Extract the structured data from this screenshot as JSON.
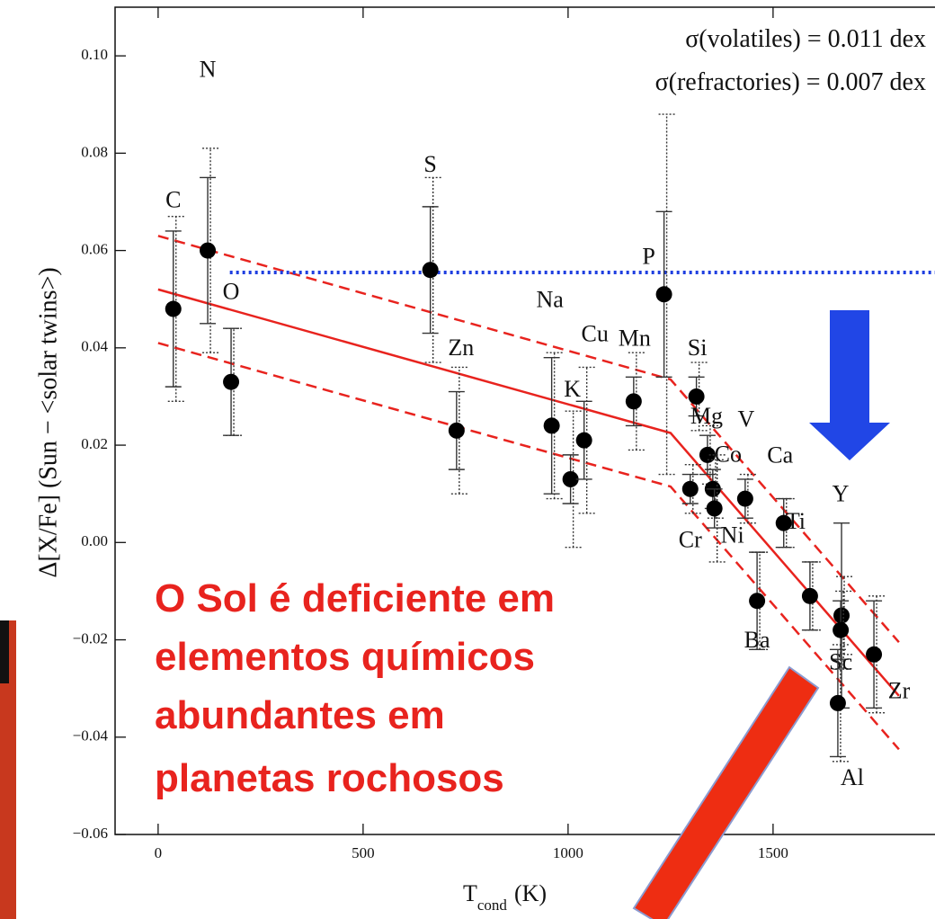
{
  "chart_data": {
    "type": "scatter",
    "annotations": [
      "σ(volatiles) = 0.011 dex",
      "σ(refractories) = 0.007 dex"
    ],
    "y_label": "Δ[X/Fe] (Sun − <solar twins>)",
    "x_label": [
      "T",
      "cond",
      "(K)"
    ],
    "message": [
      "O Sol é deficiente em",
      "elementos químicos",
      "abundantes em",
      "planetas rochosos"
    ],
    "xlim": [
      -105,
      1895
    ],
    "ylim": [
      -0.06,
      0.11
    ],
    "xticks": [
      0,
      500,
      1000,
      1500
    ],
    "yticks": [
      {
        "value": -0.06,
        "label": "−0.06"
      },
      {
        "value": -0.04,
        "label": "−0.04"
      },
      {
        "value": -0.02,
        "label": "−0.02"
      },
      {
        "value": 0,
        "label": "0.00"
      },
      {
        "value": 0.02,
        "label": "0.02"
      },
      {
        "value": 0.04,
        "label": "0.04"
      },
      {
        "value": 0.06,
        "label": "0.06"
      },
      {
        "value": 0.08,
        "label": "0.08"
      },
      {
        "value": 0.1,
        "label": "0.10"
      }
    ],
    "point_labels": [
      "C",
      "N",
      "O",
      "S",
      "Zn",
      "Na",
      "K",
      "Cu",
      "Mn",
      "P",
      "Cr",
      "Si",
      "Mg",
      "Co",
      "Ni",
      "V",
      "Ba",
      "Ca",
      "Ti",
      "Y",
      "Sc",
      "Al",
      "Zr"
    ],
    "x": [
      37,
      121,
      178,
      664,
      728,
      960,
      1006,
      1039,
      1160,
      1234,
      1298,
      1313,
      1340,
      1353,
      1357,
      1432,
      1461,
      1526,
      1590,
      1667,
      1665,
      1658,
      1746
    ],
    "values": [
      0.048,
      0.06,
      0.033,
      0.056,
      0.023,
      0.024,
      0.013,
      0.021,
      0.029,
      0.051,
      0.011,
      0.03,
      0.018,
      0.011,
      0.007,
      0.009,
      -0.012,
      0.004,
      -0.011,
      -0.015,
      -0.018,
      -0.033,
      -0.023
    ],
    "errors": [
      0.016,
      0.015,
      0.011,
      0.013,
      0.008,
      0.014,
      0.005,
      0.008,
      0.005,
      0.017,
      0.003,
      0.004,
      0.004,
      0.004,
      0.004,
      0.004,
      0.01,
      0.005,
      0.007,
      0.019,
      0.006,
      0.011,
      0.011
    ],
    "errors_dotted": [
      0.019,
      0.021,
      0.011,
      0.019,
      0.013,
      0.015,
      0.014,
      0.015,
      0.01,
      0.037,
      0.005,
      0.007,
      0.006,
      0.006,
      0.011,
      0.005,
      0.01,
      0.005,
      0.007,
      0.008,
      0.008,
      0.012,
      0.012
    ],
    "color": "#000000",
    "lines": [
      {
        "x": [
          0,
          1250,
          1807
        ],
        "values": [
          0.052,
          0.0225,
          -0.0315
        ],
        "color": "#e8231e",
        "style": "solid"
      },
      {
        "x": [
          0,
          1250,
          1807
        ],
        "values": [
          0.063,
          0.0335,
          -0.0205
        ],
        "color": "#e8231e",
        "style": "dashed"
      },
      {
        "x": [
          0,
          1250,
          1807
        ],
        "values": [
          0.041,
          0.0115,
          -0.0425
        ],
        "color": "#e8231e",
        "style": "dashed"
      },
      {
        "x": [
          175,
          1895
        ],
        "values": [
          0.0555,
          0.0555
        ],
        "color": "#1f3fe0",
        "style": "dotted"
      }
    ]
  }
}
